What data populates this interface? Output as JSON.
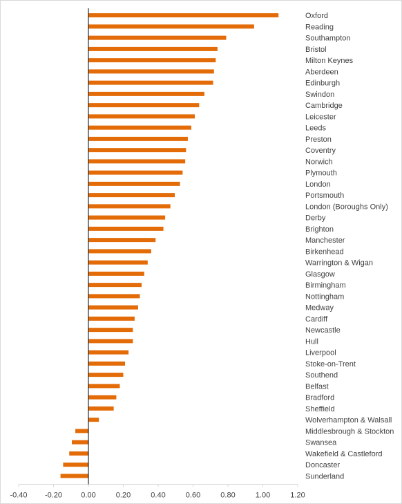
{
  "chart_data": {
    "type": "bar",
    "orientation": "horizontal",
    "title": "",
    "xlabel": "",
    "ylabel": "",
    "xlim": [
      -0.4,
      1.2
    ],
    "xticks": [
      "-0.40",
      "-0.20",
      "0.00",
      "0.20",
      "0.40",
      "0.60",
      "0.80",
      "1.00",
      "1.20"
    ],
    "grid": false,
    "legend": "none",
    "bar_color": "#E36C09",
    "categories": [
      "Oxford",
      "Reading",
      "Southampton",
      "Bristol",
      "Milton Keynes",
      "Aberdeen",
      "Edinburgh",
      "Swindon",
      "Cambridge",
      "Leicester",
      "Leeds",
      "Preston",
      "Coventry",
      "Norwich",
      "Plymouth",
      "London",
      "Portsmouth",
      "London (Boroughs Only)",
      "Derby",
      "Brighton",
      "Manchester",
      "Birkenhead",
      "Warrington & Wigan",
      "Glasgow",
      "Birmingham",
      "Nottingham",
      "Medway",
      "Cardiff",
      "Newcastle",
      "Hull",
      "Liverpool",
      "Stoke-on-Trent",
      "Southend",
      "Belfast",
      "Bradford",
      "Sheffield",
      "Wolverhampton & Walsall",
      "Middlesbrough & Stockton",
      "Swansea",
      "Wakefield & Castleford",
      "Doncaster",
      "Sunderland"
    ],
    "values": [
      1.09,
      0.95,
      0.79,
      0.74,
      0.73,
      0.72,
      0.715,
      0.665,
      0.635,
      0.61,
      0.59,
      0.57,
      0.56,
      0.555,
      0.54,
      0.525,
      0.495,
      0.47,
      0.44,
      0.43,
      0.385,
      0.36,
      0.34,
      0.32,
      0.305,
      0.295,
      0.285,
      0.265,
      0.255,
      0.255,
      0.23,
      0.21,
      0.2,
      0.18,
      0.16,
      0.145,
      0.06,
      -0.075,
      -0.095,
      -0.11,
      -0.145,
      -0.16
    ]
  }
}
